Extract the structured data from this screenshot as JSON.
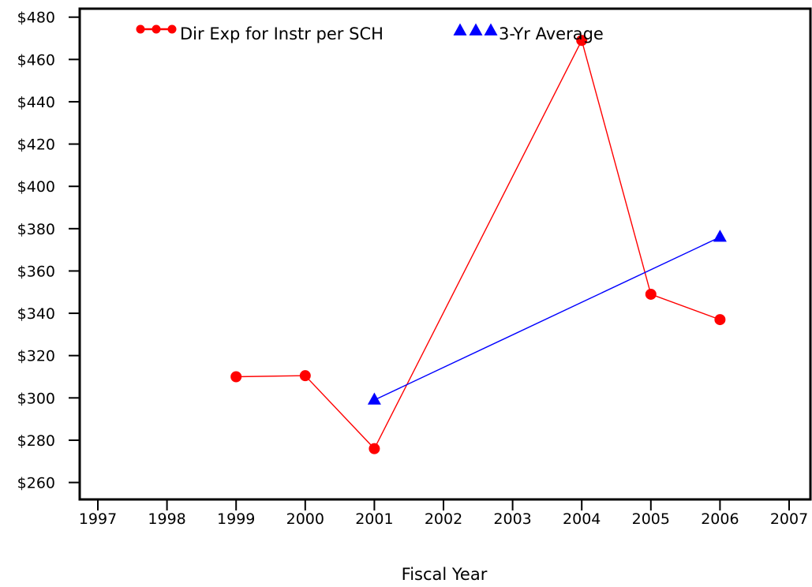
{
  "chart_data": {
    "type": "line",
    "xlabel": "Fiscal Year",
    "ylabel": "",
    "x_ticks": [
      "1997",
      "1998",
      "1999",
      "2000",
      "2001",
      "2002",
      "2003",
      "2004",
      "2005",
      "2006",
      "2007"
    ],
    "y_ticks": [
      "$260",
      "$280",
      "$300",
      "$320",
      "$340",
      "$360",
      "$380",
      "$400",
      "$420",
      "$440",
      "$460",
      "$480"
    ],
    "xlim": [
      1997,
      2007
    ],
    "ylim": [
      252,
      484
    ],
    "grid": false,
    "legend_position": "top",
    "series": [
      {
        "name": "Dir Exp for Instr per SCH",
        "marker": "circle",
        "color": "#ff0000",
        "x": [
          1999,
          2000,
          2001,
          2004,
          2005,
          2006
        ],
        "y": [
          310,
          310.5,
          276,
          469,
          349,
          337
        ]
      },
      {
        "name": "3-Yr Average",
        "marker": "triangle",
        "color": "#0000ff",
        "x": [
          2001,
          2006
        ],
        "y": [
          299,
          376
        ]
      }
    ]
  }
}
